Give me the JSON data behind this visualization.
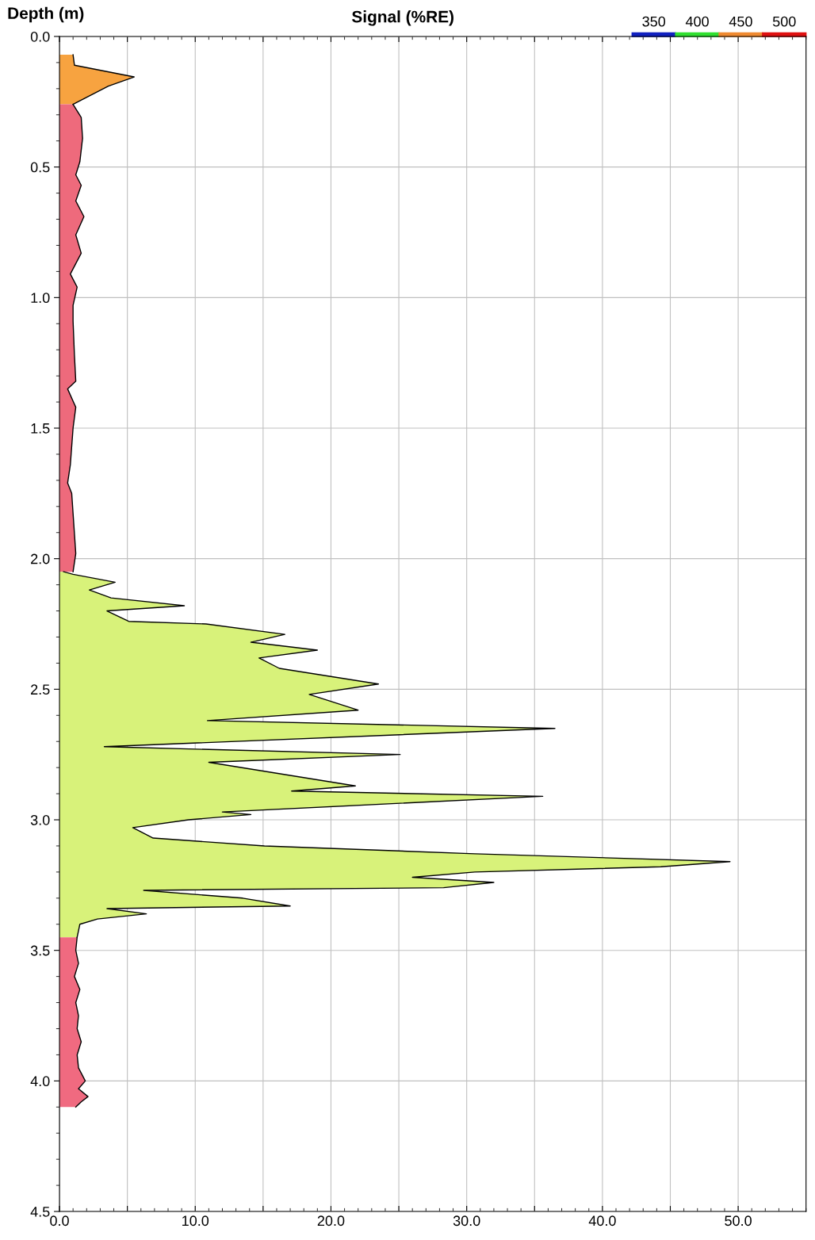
{
  "chart_data": {
    "type": "area",
    "orientation": "horizontal",
    "xlabel": "Signal (%RE)",
    "ylabel": "Depth (m)",
    "xlim": [
      0,
      55
    ],
    "ylim": [
      4.5,
      0
    ],
    "xticks": [
      {
        "value": 0,
        "label": "0.0"
      },
      {
        "value": 5,
        "label": null
      },
      {
        "value": 10,
        "label": "10.0"
      },
      {
        "value": 15,
        "label": null
      },
      {
        "value": 20,
        "label": "20.0"
      },
      {
        "value": 25,
        "label": null
      },
      {
        "value": 30,
        "label": "30.0"
      },
      {
        "value": 35,
        "label": null
      },
      {
        "value": 40,
        "label": "40.0"
      },
      {
        "value": 45,
        "label": null
      },
      {
        "value": 50,
        "label": "50.0"
      }
    ],
    "yticks": [
      {
        "value": 0,
        "label": "0.0"
      },
      {
        "value": 0.5,
        "label": "0.5"
      },
      {
        "value": 1,
        "label": "1.0"
      },
      {
        "value": 1.5,
        "label": "1.5"
      },
      {
        "value": 2,
        "label": "2.0"
      },
      {
        "value": 2.5,
        "label": "2.5"
      },
      {
        "value": 3,
        "label": "3.0"
      },
      {
        "value": 3.5,
        "label": "3.5"
      },
      {
        "value": 4,
        "label": "4.0"
      },
      {
        "value": 4.5,
        "label": "4.5"
      }
    ],
    "grid": true,
    "annotations": [
      "350",
      "400",
      "450",
      "500"
    ],
    "series": [
      {
        "color": "#f7a340",
        "x": [
          0.07,
          0.11,
          0.155,
          0.19,
          0.26
        ],
        "values": [
          1.0,
          1.1,
          5.5,
          3.6,
          1.0
        ]
      },
      {
        "color": "#ee6a7c",
        "x": [
          0.26,
          0.31,
          0.39,
          0.48,
          0.53,
          0.57,
          0.63,
          0.69,
          0.76,
          0.83,
          0.91,
          0.96,
          1.03,
          1.09,
          1.22,
          1.32,
          1.35,
          1.42,
          1.5,
          1.64,
          1.71,
          1.75,
          1.98,
          2.05
        ],
        "values": [
          1.0,
          1.6,
          1.7,
          1.5,
          1.2,
          1.6,
          1.2,
          1.8,
          1.2,
          1.6,
          0.8,
          1.3,
          1.0,
          1.0,
          1.1,
          1.2,
          0.6,
          1.2,
          1.0,
          0.8,
          0.6,
          0.9,
          1.2,
          1.0
        ]
      },
      {
        "color": "#d8f27a",
        "x": [
          2.05,
          2.06,
          2.09,
          2.12,
          2.15,
          2.18,
          2.2,
          2.24,
          2.25,
          2.29,
          2.32,
          2.35,
          2.38,
          2.42,
          2.48,
          2.52,
          2.58,
          2.62,
          2.65,
          2.72,
          2.75,
          2.78,
          2.87,
          2.89,
          2.91,
          2.97,
          2.98,
          3.0,
          3.03,
          3.07,
          3.1,
          3.13,
          3.16,
          3.18,
          3.2,
          3.22,
          3.24,
          3.26,
          3.27,
          3.3,
          3.33,
          3.34,
          3.36,
          3.38,
          3.4,
          3.45
        ],
        "values": [
          0.3,
          1.0,
          4.1,
          2.2,
          3.8,
          9.2,
          3.5,
          5.1,
          10.8,
          16.6,
          14.1,
          19.0,
          14.7,
          16.2,
          23.5,
          18.4,
          22.0,
          10.9,
          36.5,
          3.3,
          25.1,
          11.0,
          21.8,
          17.1,
          35.6,
          12.0,
          14.1,
          9.5,
          5.4,
          6.9,
          15.1,
          30.6,
          49.4,
          44.3,
          30.6,
          26.0,
          32.0,
          28.3,
          6.2,
          13.5,
          17.0,
          3.5,
          6.4,
          2.8,
          1.5,
          1.3
        ]
      },
      {
        "color": "#f06a80",
        "x": [
          3.45,
          3.5,
          3.55,
          3.6,
          3.65,
          3.7,
          3.75,
          3.8,
          3.85,
          3.9,
          3.95,
          4.0,
          4.03,
          4.06,
          4.08,
          4.1
        ],
        "values": [
          1.3,
          1.2,
          1.4,
          1.1,
          1.5,
          1.2,
          1.4,
          1.3,
          1.6,
          1.3,
          1.4,
          1.9,
          1.4,
          2.1,
          1.6,
          1.2
        ]
      }
    ]
  }
}
